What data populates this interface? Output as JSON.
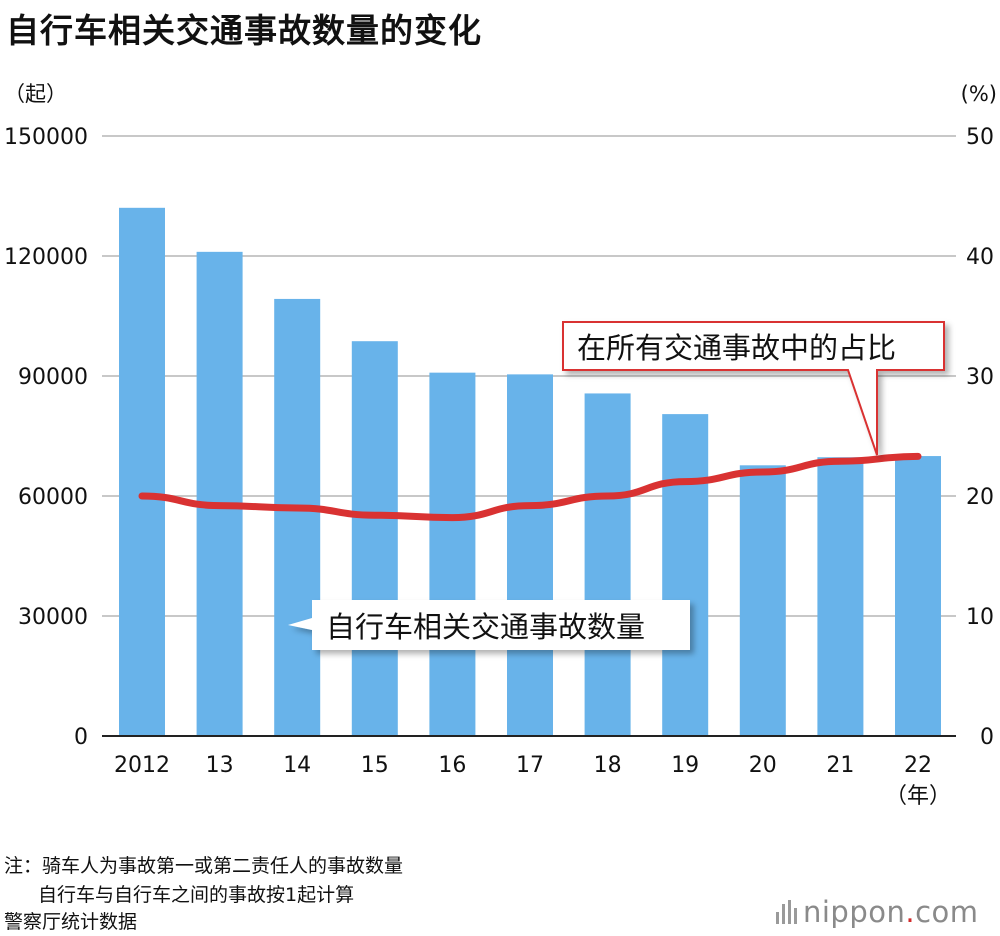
{
  "title": "自行车相关交通事故数量的变化",
  "notes": {
    "line1": "注：骑车人为事故第一或第二责任人的事故数量",
    "line2": "自行车与自行车之间的事故按1起计算"
  },
  "source": "警察厅统计数据",
  "logo": {
    "name": "nippon",
    "dot": ".",
    "suffix": "com"
  },
  "colors": {
    "bar": "#68b3ea",
    "line": "#d93232",
    "grid": "#c8c8c8",
    "callout_border": "#d93232"
  },
  "chart_data": {
    "type": "bar+line",
    "categories": [
      "2012",
      "13",
      "14",
      "15",
      "16",
      "17",
      "18",
      "19",
      "20",
      "21",
      "22"
    ],
    "x_unit": "（年）",
    "left_axis": {
      "unit": "（起）",
      "ticks": [
        "0",
        "30000",
        "60000",
        "90000",
        "120000",
        "150000"
      ],
      "range": [
        0,
        150000
      ]
    },
    "right_axis": {
      "unit": "(%)",
      "ticks": [
        "0",
        "10",
        "20",
        "30",
        "40",
        "50"
      ],
      "range": [
        0,
        50
      ]
    },
    "grid": true,
    "series": [
      {
        "name": "自行车相关交通事故数量",
        "kind": "bar",
        "axis": "left",
        "values": [
          132048,
          121040,
          109269,
          98700,
          90836,
          90407,
          85641,
          80473,
          67673,
          69694,
          69985
        ]
      },
      {
        "name": "在所有交通事故中的占比",
        "kind": "line",
        "axis": "right",
        "values": [
          20.0,
          19.2,
          19.0,
          18.4,
          18.2,
          19.2,
          20.0,
          21.2,
          22.0,
          22.9,
          23.3
        ]
      }
    ]
  }
}
